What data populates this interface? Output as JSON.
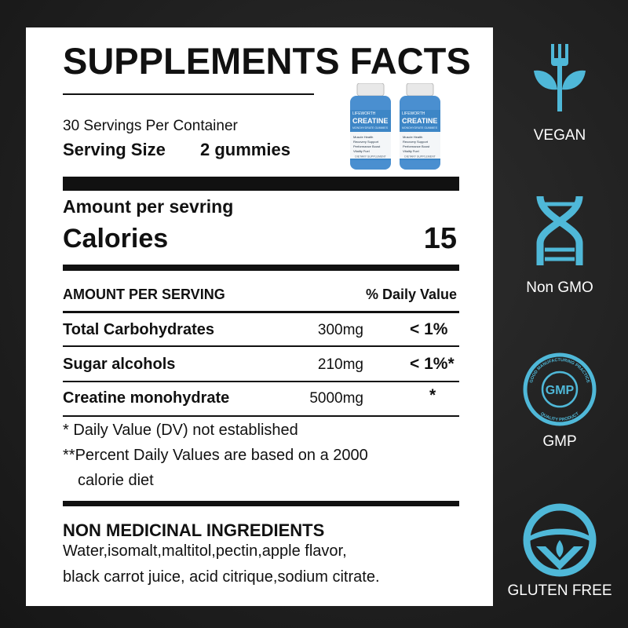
{
  "title": "SUPPLEMENTS FACTS",
  "servings_per_container": "30 Servings Per Container",
  "serving_size_label": "Serving Size",
  "serving_size_value": "2 gummies",
  "product": {
    "brand": "LIFEWORTH",
    "name": "CREATINE",
    "sub": "MONOHYDRATE GUMMIES",
    "bullets": [
      "Muscle Health",
      "Recovery Support",
      "Performance Boost",
      "Vitality Fuel"
    ],
    "footer": "DIETARY SUPPLEMENT"
  },
  "amount_per_serving": "Amount per sevring",
  "calories_label": "Calories",
  "calories_value": "15",
  "table": {
    "header_left": "AMOUNT PER SERVING",
    "header_right": "% Daily Value",
    "rows": [
      {
        "name": "Total Carbohydrates",
        "amount": "300mg",
        "dv": "< 1%"
      },
      {
        "name": "Sugar alcohols",
        "amount": "210mg",
        "dv": "< 1%*"
      },
      {
        "name": "Creatine monohydrate",
        "amount": "5000mg",
        "dv": "*"
      }
    ]
  },
  "footnotes": [
    "*  Daily Value (DV) not established",
    "**Percent Daily Values are based on a 2000",
    "calorie diet"
  ],
  "ingredients_title": "NON MEDICINAL INGREDIENTS",
  "ingredients_lines": [
    "Water,isomalt,maltitol,pectin,apple flavor,",
    "black carrot juice, acid citrique,sodium citrate."
  ],
  "badges": [
    {
      "label": "VEGAN",
      "icon": "plant-fork-icon"
    },
    {
      "label": "Non GMO",
      "icon": "dna-icon"
    },
    {
      "label": "GMP",
      "icon": "gmp-seal-icon",
      "seal_top": "GOOD MANUFACTURING PRACTICE",
      "seal_bottom": "QUALITY PRODUCT",
      "seal_center": "GMP"
    },
    {
      "label": "GLUTEN FREE",
      "icon": "gluten-free-icon"
    }
  ],
  "colors": {
    "accent": "#4fb8d8",
    "background": "#1e1e1e",
    "panel": "#ffffff"
  }
}
